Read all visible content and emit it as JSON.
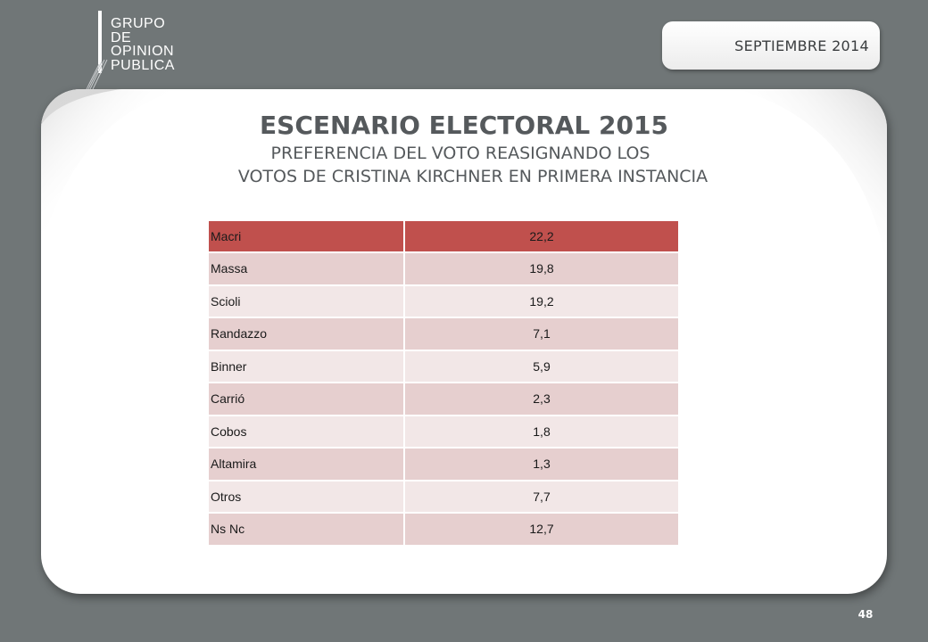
{
  "logo": {
    "lines": [
      "GRUPO",
      "DE",
      "OPINION",
      "PUBLICA"
    ]
  },
  "date": "SEPTIEMBRE  2014",
  "title": "ESCENARIO ELECTORAL 2015",
  "subtitle_line1": "PREFERENCIA DEL VOTO REASIGNANDO LOS",
  "subtitle_line2": "VOTOS DE CRISTINA KIRCHNER EN PRIMERA INSTANCIA",
  "table": {
    "rows": [
      {
        "name": "Macri",
        "value": "22,2"
      },
      {
        "name": "Massa",
        "value": "19,8"
      },
      {
        "name": "Scioli",
        "value": "19,2"
      },
      {
        "name": "Randazzo",
        "value": "7,1"
      },
      {
        "name": "Binner",
        "value": "5,9"
      },
      {
        "name": "Carrió",
        "value": "2,3"
      },
      {
        "name": "Cobos",
        "value": "1,8"
      },
      {
        "name": "Altamira",
        "value": "1,3"
      },
      {
        "name": "Otros",
        "value": "7,7"
      },
      {
        "name": "Ns Nc",
        "value": "12,7"
      }
    ]
  },
  "page_number": "48",
  "colors": {
    "background": "#707677",
    "header_row": "#c0504d",
    "row_dark": "#e6cfcf",
    "row_light": "#f2e7e7",
    "title_text": "#55595c"
  }
}
